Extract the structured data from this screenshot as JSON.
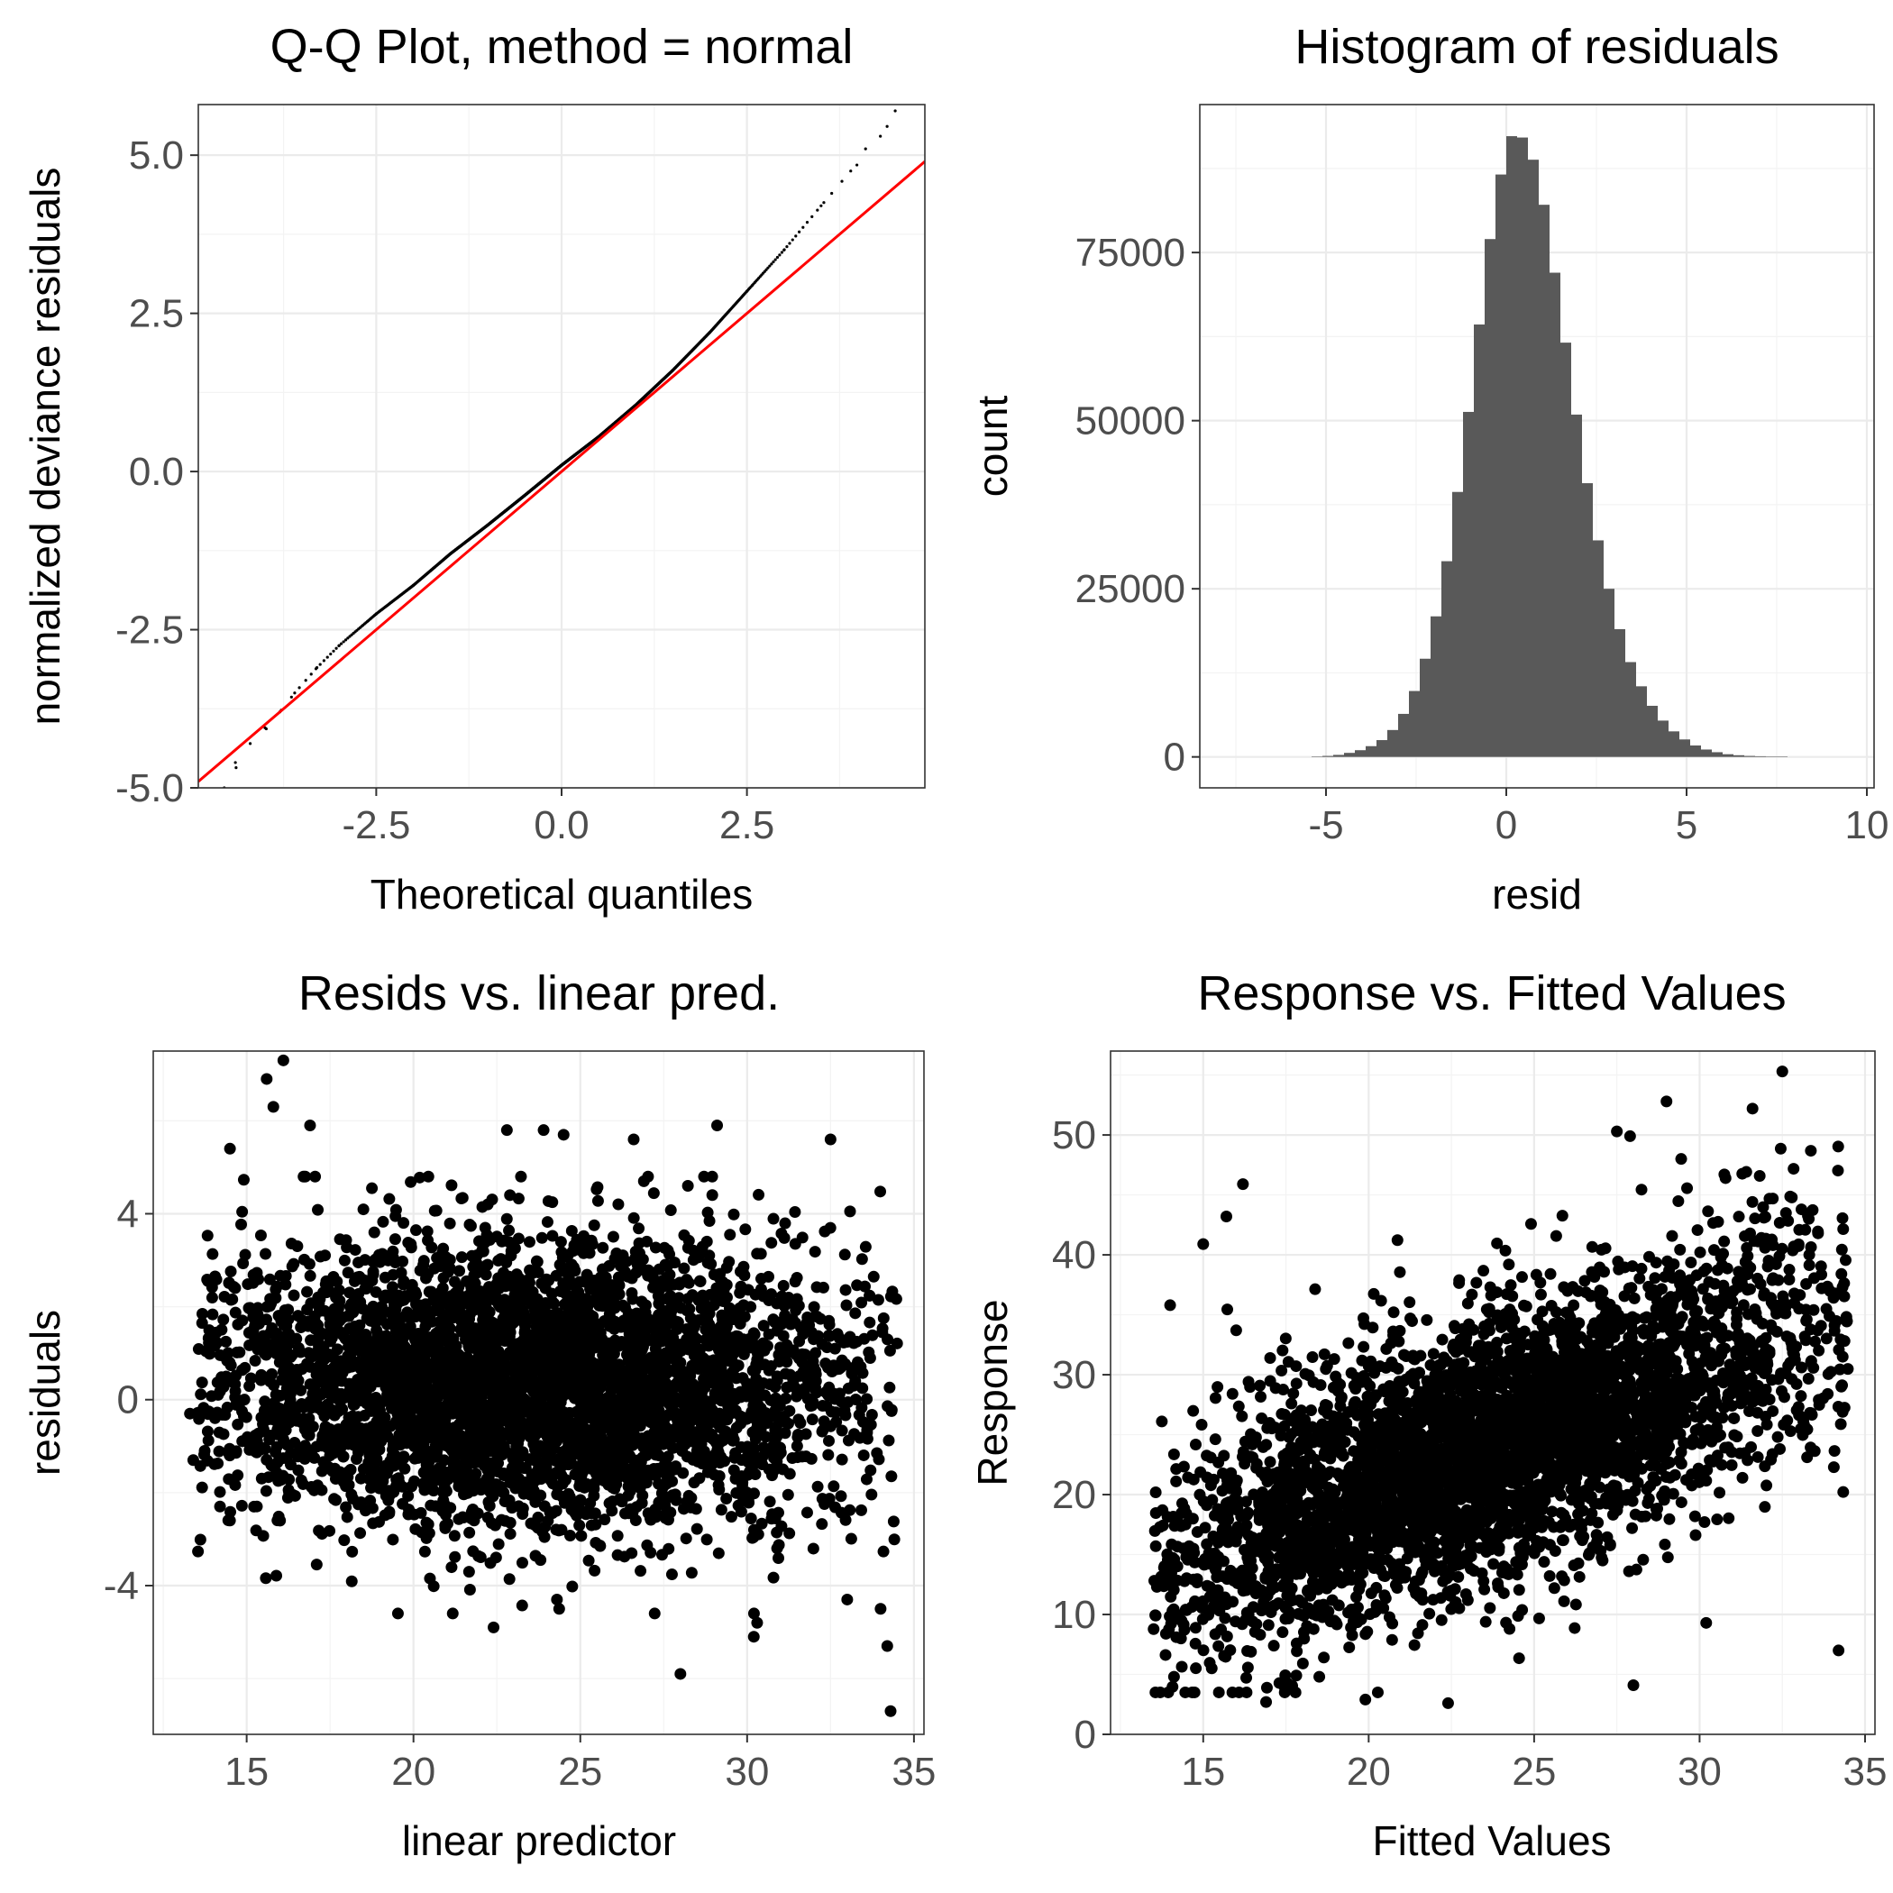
{
  "figure": {
    "panels": [
      "qq",
      "hist",
      "resid_lp",
      "resp_fit"
    ]
  },
  "chart_data": [
    {
      "id": "qq",
      "type": "scatter",
      "title": "Q-Q Plot, method = normal",
      "xlabel": "Theoretical quantiles",
      "ylabel": "normalized deviance residuals",
      "xlim": [
        -4.9,
        4.9
      ],
      "ylim": [
        -5.0,
        5.8
      ],
      "xticks": [
        -2.5,
        0.0,
        2.5
      ],
      "xtick_labels": [
        "-2.5",
        "0.0",
        "2.5"
      ],
      "yticks": [
        -5.0,
        -2.5,
        0.0,
        2.5,
        5.0
      ],
      "ytick_labels": [
        "-5.0",
        "-2.5",
        "0.0",
        "2.5",
        "5.0"
      ],
      "grid": true,
      "series": [
        {
          "kind": "points",
          "color": "#000000",
          "x": [
            -4.55,
            -4.4,
            -4.2,
            -4.0,
            -3.8,
            -3.6,
            -3.3,
            -3.0,
            -2.5,
            -2.0,
            -1.5,
            -1.0,
            -0.5,
            0.0,
            0.5,
            1.0,
            1.5,
            2.0,
            2.5,
            3.0,
            3.5,
            3.9,
            4.1,
            4.3,
            4.5
          ],
          "y": [
            -5.0,
            -4.6,
            -4.3,
            -4.05,
            -3.8,
            -3.5,
            -3.1,
            -2.75,
            -2.25,
            -1.8,
            -1.3,
            -0.85,
            -0.38,
            0.1,
            0.55,
            1.05,
            1.6,
            2.2,
            2.85,
            3.5,
            4.2,
            4.75,
            5.1,
            5.3,
            5.7
          ]
        },
        {
          "kind": "reference-line",
          "color": "#ff0000",
          "x": [
            -4.9,
            4.9
          ],
          "y": [
            -4.9,
            4.9
          ]
        }
      ]
    },
    {
      "id": "hist",
      "type": "bar",
      "title": "Histogram of residuals",
      "xlabel": "resid",
      "ylabel": "count",
      "xlim": [
        -8.5,
        10.2
      ],
      "ylim": [
        -4600,
        97000
      ],
      "xticks": [
        -5,
        0,
        5,
        10
      ],
      "xtick_labels": [
        "-5",
        "0",
        "5",
        "10"
      ],
      "yticks": [
        0,
        25000,
        50000,
        75000
      ],
      "ytick_labels": [
        "0",
        "25000",
        "50000",
        "75000"
      ],
      "grid": true,
      "bar_color": "#595959",
      "bin_width": 0.3,
      "bins_start": -5.4,
      "values": [
        50,
        150,
        300,
        600,
        1000,
        1600,
        2500,
        4000,
        6400,
        9800,
        14600,
        20900,
        29100,
        39400,
        51300,
        64300,
        77000,
        86600,
        92300,
        92100,
        88800,
        82100,
        72000,
        61600,
        50900,
        40700,
        32200,
        25000,
        19000,
        14100,
        10500,
        7600,
        5400,
        3800,
        2600,
        1700,
        1100,
        700,
        400,
        250,
        150,
        100,
        60,
        40
      ]
    },
    {
      "id": "resid_lp",
      "type": "scatter",
      "title": "Resids vs. linear pred.",
      "xlabel": "linear predictor",
      "ylabel": "residuals",
      "xlim": [
        12.2,
        35.3
      ],
      "ylim": [
        -7.2,
        7.5
      ],
      "xticks": [
        15,
        20,
        25,
        30,
        35
      ],
      "xtick_labels": [
        "15",
        "20",
        "25",
        "30",
        "35"
      ],
      "yticks": [
        -4,
        0,
        4
      ],
      "ytick_labels": [
        "-4",
        "0",
        "4"
      ],
      "grid": true,
      "point_color": "#000000",
      "outliers": {
        "x": [
          16.1,
          15.6,
          15.8,
          14.5,
          16.9,
          22.8,
          23.9,
          24.5,
          26.6,
          29.1,
          32.5,
          13.3,
          13.4,
          14.5,
          22.4,
          24.3,
          28.0,
          30.2,
          30.3,
          33.0,
          34.2,
          34.3,
          34.0
        ],
        "y": [
          7.3,
          6.9,
          6.3,
          5.4,
          5.9,
          5.8,
          5.8,
          5.7,
          5.6,
          5.9,
          5.6,
          -0.3,
          -1.3,
          -2.6,
          -4.9,
          -4.3,
          -5.9,
          -5.1,
          -4.8,
          -4.3,
          -5.3,
          -6.7,
          -4.5
        ]
      },
      "cloud": {
        "x_range": [
          13.5,
          34.5
        ],
        "y_center": 0.3,
        "y_sd": 1.55
      }
    },
    {
      "id": "resp_fit",
      "type": "scatter",
      "title": "Response vs. Fitted Values",
      "xlabel": "Fitted Values",
      "ylabel": "Response",
      "xlim": [
        12.2,
        35.3
      ],
      "ylim": [
        0,
        57
      ],
      "xticks": [
        15,
        20,
        25,
        30,
        35
      ],
      "xtick_labels": [
        "15",
        "20",
        "25",
        "30",
        "35"
      ],
      "yticks": [
        0,
        10,
        20,
        30,
        40,
        50
      ],
      "ytick_labels": [
        "0",
        "10",
        "20",
        "30",
        "40",
        "50"
      ],
      "grid": true,
      "point_color": "#000000",
      "outliers": {
        "x": [
          32.5,
          29.0,
          27.5,
          27.9,
          31.6,
          16.2,
          15.7,
          14.0,
          15.0,
          16.9,
          22.4,
          19.9,
          28.0,
          30.2,
          34.2,
          13.6,
          33.3
        ],
        "y": [
          55.3,
          52.8,
          50.3,
          49.9,
          52.2,
          45.9,
          43.2,
          35.8,
          40.9,
          2.7,
          2.6,
          2.9,
          4.1,
          9.3,
          7.0,
          12.3,
          43.0
        ]
      },
      "cloud": {
        "x_range": [
          13.5,
          34.5
        ],
        "y_offset": 0.3,
        "y_sd": 5.6
      }
    }
  ]
}
